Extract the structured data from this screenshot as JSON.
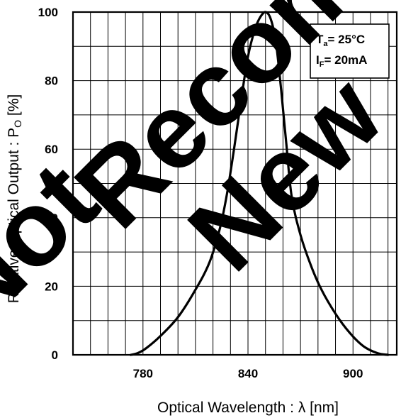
{
  "chart_data": {
    "type": "line",
    "xlabel": "Optical Wavelength : λ [nm]",
    "ylabel_main": "Relative Optical Output : P",
    "ylabel_sub": "O",
    "ylabel_unit": " [%]",
    "xlim": [
      740,
      925
    ],
    "ylim": [
      0,
      100
    ],
    "xticks": [
      780,
      840,
      900
    ],
    "yticks": [
      0,
      20,
      40,
      60,
      80,
      100
    ],
    "x_grid_step": 10,
    "y_grid_step": 10,
    "grid": true,
    "series": [
      {
        "x": [
          773,
          777,
          782,
          790,
          800,
          810,
          818,
          824,
          828,
          832,
          836,
          840,
          844,
          847,
          850,
          853,
          856,
          859,
          862,
          865,
          870,
          876,
          882,
          890,
          898,
          906,
          914,
          920
        ],
        "y": [
          0,
          0.5,
          2,
          5.5,
          11,
          19,
          27,
          37,
          47,
          60,
          74,
          87,
          95,
          98.5,
          100,
          98,
          91,
          77,
          61,
          46,
          35,
          26,
          19,
          12,
          6.5,
          2.5,
          0.5,
          0
        ]
      }
    ],
    "legend": {
      "line1_main": "T",
      "line1_sub": "a",
      "line1_rest": "= 25°C",
      "line2_main": "I",
      "line2_sub": "F",
      "line2_rest": "= 20mA"
    },
    "colors": {
      "line": "#000000",
      "grid": "#000000",
      "watermark": "#000000"
    }
  },
  "watermark": {
    "word1": "Not",
    "word2": "Recommended",
    "word3": "New"
  }
}
